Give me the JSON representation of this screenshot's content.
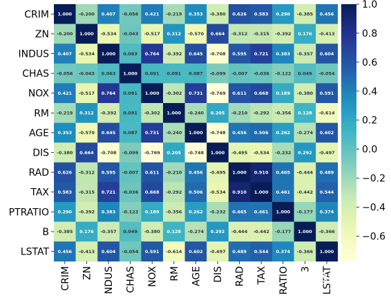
{
  "chart_data": {
    "type": "heatmap",
    "variables": [
      "CRIM",
      "ZN",
      "INDUS",
      "CHAS",
      "NOX",
      "RM",
      "AGE",
      "DIS",
      "RAD",
      "TAX",
      "PTRATIO",
      "B",
      "LSTAT"
    ],
    "x_tick_labels": [
      "CRIM",
      "ZN",
      "NDUS",
      "CHAS",
      "NOX",
      "RM",
      "AGE",
      "DIS",
      "RAD",
      "TAX",
      "RATIO",
      "3",
      "LSTAT"
    ],
    "values": [
      [
        1.0,
        -0.2,
        0.407,
        -0.056,
        0.421,
        -0.219,
        0.353,
        -0.38,
        0.626,
        0.583,
        0.29,
        -0.385,
        0.456
      ],
      [
        -0.2,
        1.0,
        -0.534,
        -0.043,
        -0.517,
        0.312,
        -0.57,
        0.664,
        -0.312,
        -0.315,
        -0.392,
        0.176,
        -0.413
      ],
      [
        0.407,
        -0.534,
        1.0,
        0.063,
        0.764,
        -0.392,
        0.645,
        -0.708,
        0.595,
        0.721,
        0.383,
        -0.357,
        0.604
      ],
      [
        -0.056,
        -0.043,
        0.063,
        1.0,
        0.091,
        0.091,
        0.087,
        -0.099,
        -0.007,
        -0.036,
        -0.122,
        0.049,
        -0.054
      ],
      [
        0.421,
        -0.517,
        0.764,
        0.091,
        1.0,
        -0.302,
        0.731,
        -0.769,
        0.611,
        0.668,
        0.189,
        -0.38,
        0.591
      ],
      [
        -0.219,
        0.312,
        -0.392,
        0.091,
        -0.302,
        1.0,
        -0.24,
        0.205,
        -0.21,
        -0.292,
        -0.356,
        0.128,
        -0.614
      ],
      [
        0.353,
        -0.57,
        0.645,
        0.087,
        0.731,
        -0.24,
        1.0,
        -0.748,
        0.456,
        0.506,
        0.262,
        -0.274,
        0.602
      ],
      [
        -0.38,
        0.664,
        -0.708,
        -0.099,
        -0.769,
        0.205,
        -0.748,
        1.0,
        -0.495,
        -0.534,
        -0.232,
        0.292,
        -0.497
      ],
      [
        0.626,
        -0.312,
        0.595,
        -0.007,
        0.611,
        -0.21,
        0.456,
        -0.495,
        1.0,
        0.91,
        0.465,
        -0.444,
        0.489
      ],
      [
        0.583,
        -0.315,
        0.721,
        -0.036,
        0.668,
        -0.292,
        0.506,
        -0.534,
        0.91,
        1.0,
        0.461,
        -0.442,
        0.544
      ],
      [
        0.29,
        -0.392,
        0.383,
        -0.122,
        0.189,
        -0.356,
        0.262,
        -0.232,
        0.465,
        0.461,
        1.0,
        -0.177,
        0.374
      ],
      [
        -0.385,
        0.176,
        -0.357,
        0.049,
        -0.38,
        0.128,
        -0.274,
        0.292,
        -0.444,
        -0.442,
        -0.177,
        1.0,
        -0.366
      ],
      [
        0.456,
        -0.413,
        0.604,
        -0.054,
        0.591,
        -0.614,
        0.602,
        -0.497,
        0.489,
        0.544,
        0.374,
        -0.366,
        1.0
      ]
    ],
    "colormap": "YlGnBu",
    "vmin": -0.77,
    "vmax": 1.0,
    "colorbar_ticks": [
      1.0,
      0.8,
      0.6,
      0.4,
      0.2,
      0.0,
      -0.2,
      -0.4,
      -0.6
    ],
    "colorbar_tick_labels": [
      "1.0",
      "0.8",
      "0.6",
      "0.4",
      "0.2",
      "0.0",
      "−0.2",
      "−0.4",
      "−0.6"
    ],
    "annotation_format": "3 decimals",
    "legend_placement": "right (colorbar)"
  },
  "watermark": "知乎 @数据分析修炼手册"
}
